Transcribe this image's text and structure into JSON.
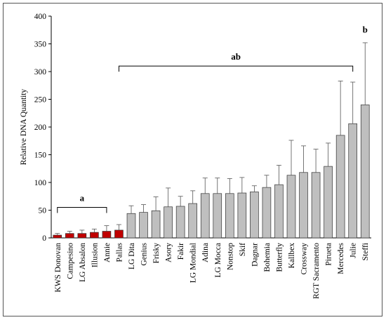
{
  "chart_data": {
    "type": "bar",
    "title": "",
    "xlabel": "",
    "ylabel": "Relative DNA Quantity",
    "ylim": [
      0,
      400
    ],
    "yticks": [
      0,
      50,
      100,
      150,
      200,
      250,
      300,
      350,
      400
    ],
    "grid": false,
    "categories": [
      "KWS Donovan",
      "Campesino",
      "LG Absalon",
      "Illusion",
      "Annie",
      "Pallas",
      "LG Dita",
      "Genius",
      "Frisky",
      "Asory",
      "Fakir",
      "LG Mondial",
      "Adina",
      "LG Mocca",
      "Nonstop",
      "Skif",
      "Dagnar",
      "Bohemia",
      "Butterfly",
      "Kallbex",
      "Crossway",
      "RGT Sacramento",
      "Pirueta",
      "Mercedes",
      "Julie",
      "Steffi"
    ],
    "values": [
      5,
      8,
      8,
      10,
      12,
      14,
      44,
      46,
      49,
      56,
      57,
      62,
      80,
      80,
      80,
      81,
      83,
      91,
      96,
      113,
      118,
      118,
      129,
      185,
      206,
      240
    ],
    "errors": [
      3,
      4,
      6,
      6,
      10,
      10,
      14,
      14,
      25,
      34,
      18,
      23,
      28,
      28,
      27,
      28,
      11,
      22,
      35,
      63,
      48,
      42,
      42,
      98,
      75,
      112
    ],
    "colors": [
      "#c00000",
      "#c00000",
      "#c00000",
      "#c00000",
      "#c00000",
      "#c00000",
      "#bfbfbf",
      "#bfbfbf",
      "#bfbfbf",
      "#bfbfbf",
      "#bfbfbf",
      "#bfbfbf",
      "#bfbfbf",
      "#bfbfbf",
      "#bfbfbf",
      "#bfbfbf",
      "#bfbfbf",
      "#bfbfbf",
      "#bfbfbf",
      "#bfbfbf",
      "#bfbfbf",
      "#bfbfbf",
      "#bfbfbf",
      "#bfbfbf",
      "#bfbfbf",
      "#bfbfbf"
    ],
    "annotations": [
      {
        "text": "a",
        "from": "KWS Donovan",
        "to": "Annie",
        "level": 55
      },
      {
        "text": "ab",
        "from": "Pallas",
        "to": "Julie",
        "level": 310
      },
      {
        "text": "b",
        "at": "Steffi",
        "level": 370
      }
    ]
  }
}
